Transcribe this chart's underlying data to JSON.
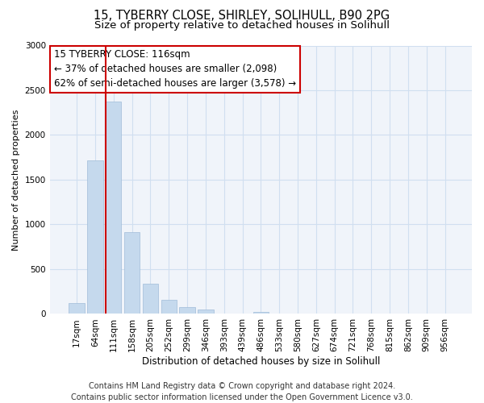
{
  "title": "15, TYBERRY CLOSE, SHIRLEY, SOLIHULL, B90 2PG",
  "subtitle": "Size of property relative to detached houses in Solihull",
  "xlabel": "Distribution of detached houses by size in Solihull",
  "ylabel": "Number of detached properties",
  "bin_labels": [
    "17sqm",
    "64sqm",
    "111sqm",
    "158sqm",
    "205sqm",
    "252sqm",
    "299sqm",
    "346sqm",
    "393sqm",
    "439sqm",
    "486sqm",
    "533sqm",
    "580sqm",
    "627sqm",
    "674sqm",
    "721sqm",
    "768sqm",
    "815sqm",
    "862sqm",
    "909sqm",
    "956sqm"
  ],
  "bar_values": [
    120,
    1720,
    2370,
    910,
    340,
    155,
    80,
    45,
    0,
    0,
    25,
    0,
    0,
    0,
    0,
    0,
    0,
    0,
    0,
    0,
    0
  ],
  "bar_color": "#c5d9ed",
  "bar_edge_color": "#a0bcd8",
  "property_line_bin_index": 2,
  "property_line_label": "15 TYBERRY CLOSE: 116sqm",
  "annotation_line1": "← 37% of detached houses are smaller (2,098)",
  "annotation_line2": "62% of semi-detached houses are larger (3,578) →",
  "annotation_box_color": "#ffffff",
  "annotation_box_edge": "#cc0000",
  "vline_color": "#cc0000",
  "ylim": [
    0,
    3000
  ],
  "yticks": [
    0,
    500,
    1000,
    1500,
    2000,
    2500,
    3000
  ],
  "footer1": "Contains HM Land Registry data © Crown copyright and database right 2024.",
  "footer2": "Contains public sector information licensed under the Open Government Licence v3.0.",
  "title_fontsize": 10.5,
  "subtitle_fontsize": 9.5,
  "xlabel_fontsize": 8.5,
  "ylabel_fontsize": 8,
  "tick_fontsize": 7.5,
  "footer_fontsize": 7,
  "annotation_fontsize": 8.5,
  "grid_color": "#d0dff0",
  "bg_color": "#f0f4fa"
}
